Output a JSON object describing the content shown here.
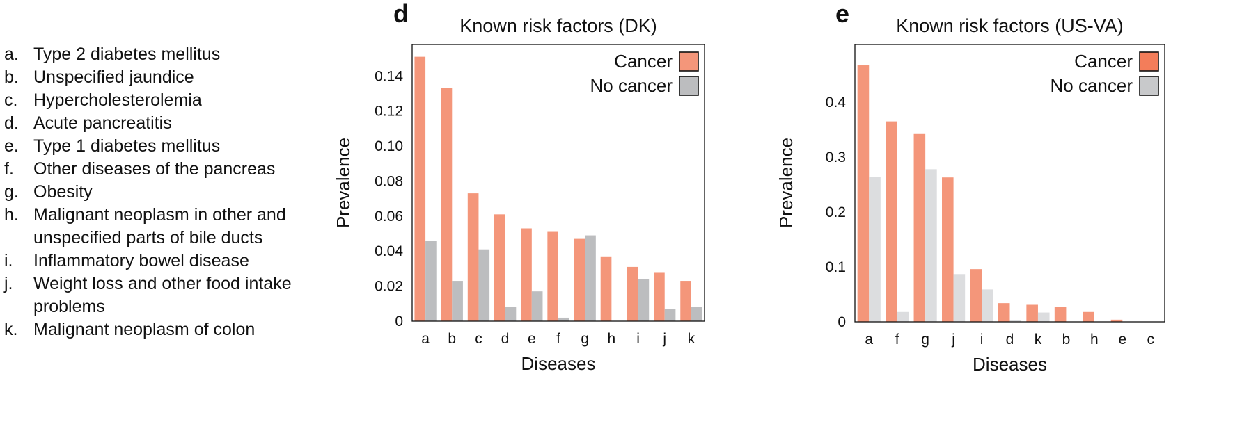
{
  "definitions": [
    {
      "key": "a.",
      "text": "Type 2 diabetes mellitus"
    },
    {
      "key": "b.",
      "text": "Unspecified jaundice"
    },
    {
      "key": "c.",
      "text": "Hypercholesterolemia"
    },
    {
      "key": "d.",
      "text": "Acute pancreatitis"
    },
    {
      "key": "e.",
      "text": "Type 1 diabetes mellitus"
    },
    {
      "key": "f.",
      "text": "Other diseases of the pancreas"
    },
    {
      "key": "g.",
      "text": "Obesity"
    },
    {
      "key": "h.",
      "text": "Malignant neoplasm in other and unspecified parts of bile ducts"
    },
    {
      "key": "i.",
      "text": "Inflammatory bowel disease"
    },
    {
      "key": "j.",
      "text": "Weight loss and other food intake problems"
    },
    {
      "key": "k.",
      "text": "Malignant neoplasm of colon"
    }
  ],
  "chart_data": [
    {
      "panel": "d",
      "type": "bar",
      "title": "Known risk factors (DK)",
      "xlabel": "Diseases",
      "ylabel": "Prevalence",
      "ylim": [
        0,
        0.158
      ],
      "yticks": [
        0,
        0.02,
        0.04,
        0.06,
        0.08,
        0.1,
        0.12,
        0.14
      ],
      "ytick_labels": [
        "0",
        "0.02",
        "0.04",
        "0.06",
        "0.08",
        "0.10",
        "0.12",
        "0.14"
      ],
      "categories": [
        "a",
        "b",
        "c",
        "d",
        "e",
        "f",
        "g",
        "h",
        "i",
        "j",
        "k"
      ],
      "series": [
        {
          "name": "Cancer",
          "color": "#f4967a",
          "values": [
            0.151,
            0.133,
            0.073,
            0.061,
            0.053,
            0.051,
            0.047,
            0.037,
            0.031,
            0.028,
            0.023
          ]
        },
        {
          "name": "No cancer",
          "color": "#bcbdbf",
          "values": [
            0.046,
            0.023,
            0.041,
            0.008,
            0.017,
            0.002,
            0.049,
            0.0,
            0.024,
            0.007,
            0.008
          ]
        }
      ],
      "legend_position": "top-right",
      "grid": false
    },
    {
      "panel": "e",
      "type": "bar",
      "title": "Known risk factors (US-VA)",
      "xlabel": "Diseases",
      "ylabel": "Prevalence",
      "ylim": [
        0,
        0.505
      ],
      "yticks": [
        0,
        0.1,
        0.2,
        0.3,
        0.4
      ],
      "ytick_labels": [
        "0",
        "0.1",
        "0.2",
        "0.3",
        "0.4"
      ],
      "categories": [
        "a",
        "f",
        "g",
        "j",
        "i",
        "d",
        "k",
        "b",
        "h",
        "e",
        "c"
      ],
      "series": [
        {
          "name": "Cancer",
          "color": "#f4967a",
          "legend_color": "#f37d5a",
          "values": [
            0.467,
            0.365,
            0.342,
            0.263,
            0.096,
            0.034,
            0.031,
            0.027,
            0.018,
            0.004,
            0.0
          ]
        },
        {
          "name": "No cancer",
          "color": "#dcdddf",
          "legend_color": "#c8c9cb",
          "values": [
            0.264,
            0.018,
            0.278,
            0.087,
            0.059,
            0.003,
            0.017,
            0.0,
            0.0,
            0.0,
            0.0
          ]
        }
      ],
      "legend_position": "top-right",
      "grid": false
    }
  ]
}
